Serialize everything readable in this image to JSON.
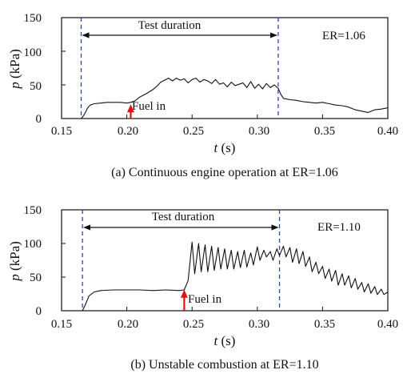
{
  "chart_data": [
    {
      "type": "line",
      "caption": "(a) Continuous engine operation at ER=1.06",
      "ylabel_var": "p",
      "ylabel_unit": " (kPa)",
      "xlabel_var": "t",
      "xlabel_unit": " (s)",
      "xlim": [
        0.15,
        0.4
      ],
      "ylim": [
        0,
        150
      ],
      "xticks": [
        0.15,
        0.2,
        0.25,
        0.3,
        0.35,
        0.4
      ],
      "xtick_labels": [
        "0.15",
        "0.20",
        "0.25",
        "0.30",
        "0.35",
        "0.40"
      ],
      "yticks": [
        0,
        50,
        100,
        150
      ],
      "ytick_labels": [
        "0",
        "50",
        "100",
        "150"
      ],
      "er_label": "ER=1.06",
      "test_duration_label": "Test duration",
      "test_start": 0.165,
      "test_end": 0.316,
      "fuel_in_label": "Fuel in",
      "fuel_in_t": 0.203,
      "fuel_in_p": 20,
      "series": [
        {
          "x": [
            0.15,
            0.165,
            0.166,
            0.168,
            0.17,
            0.172,
            0.175,
            0.18,
            0.185,
            0.19,
            0.195,
            0.2,
            0.203,
            0.206,
            0.21,
            0.215,
            0.22,
            0.223,
            0.226,
            0.229,
            0.232,
            0.235,
            0.238,
            0.241,
            0.244,
            0.247,
            0.25,
            0.253,
            0.256,
            0.259,
            0.262,
            0.265,
            0.268,
            0.271,
            0.274,
            0.277,
            0.28,
            0.283,
            0.286,
            0.289,
            0.292,
            0.295,
            0.298,
            0.301,
            0.304,
            0.307,
            0.31,
            0.313,
            0.316,
            0.318,
            0.32,
            0.325,
            0.33,
            0.335,
            0.34,
            0.345,
            0.35,
            0.355,
            0.36,
            0.365,
            0.37,
            0.375,
            0.38,
            0.385,
            0.39,
            0.395,
            0.4
          ],
          "y": [
            0,
            0,
            2,
            8,
            16,
            20,
            22,
            23,
            24,
            24,
            24,
            23,
            24,
            26,
            32,
            37,
            43,
            48,
            54,
            57,
            60,
            56,
            60,
            57,
            59,
            53,
            58,
            60,
            54,
            58,
            56,
            52,
            58,
            51,
            53,
            47,
            54,
            49,
            51,
            53,
            46,
            55,
            45,
            51,
            44,
            52,
            46,
            50,
            45,
            36,
            30,
            28,
            27,
            25,
            24,
            23,
            24,
            22,
            20,
            19,
            17,
            13,
            11,
            9,
            13,
            14,
            16
          ]
        }
      ]
    },
    {
      "type": "line",
      "caption": "(b) Unstable combustion at ER=1.10",
      "ylabel_var": "p",
      "ylabel_unit": " (kPa)",
      "xlabel_var": "t",
      "xlabel_unit": " (s)",
      "xlim": [
        0.15,
        0.4
      ],
      "ylim": [
        0,
        150
      ],
      "xticks": [
        0.15,
        0.2,
        0.25,
        0.3,
        0.35,
        0.4
      ],
      "xtick_labels": [
        "0.15",
        "0.20",
        "0.25",
        "0.30",
        "0.35",
        "0.40"
      ],
      "yticks": [
        0,
        50,
        100,
        150
      ],
      "ytick_labels": [
        "0",
        "50",
        "100",
        "150"
      ],
      "er_label": "ER=1.10",
      "test_duration_label": "Test duration",
      "test_start": 0.166,
      "test_end": 0.317,
      "fuel_in_label": "Fuel in",
      "fuel_in_t": 0.244,
      "fuel_in_p": 30,
      "series": [
        {
          "x": [
            0.15,
            0.166,
            0.168,
            0.171,
            0.175,
            0.18,
            0.19,
            0.2,
            0.21,
            0.22,
            0.23,
            0.24,
            0.244,
            0.247,
            0.25,
            0.252,
            0.255,
            0.257,
            0.26,
            0.262,
            0.265,
            0.267,
            0.27,
            0.272,
            0.275,
            0.277,
            0.28,
            0.282,
            0.285,
            0.287,
            0.29,
            0.292,
            0.295,
            0.297,
            0.3,
            0.302,
            0.305,
            0.307,
            0.31,
            0.312,
            0.315,
            0.317,
            0.32,
            0.322,
            0.325,
            0.327,
            0.33,
            0.332,
            0.335,
            0.337,
            0.34,
            0.342,
            0.345,
            0.347,
            0.35,
            0.352,
            0.355,
            0.357,
            0.36,
            0.362,
            0.365,
            0.367,
            0.37,
            0.372,
            0.375,
            0.377,
            0.38,
            0.382,
            0.385,
            0.387,
            0.39,
            0.392,
            0.395,
            0.397,
            0.4
          ],
          "y": [
            0,
            0,
            8,
            22,
            28,
            30,
            31,
            31,
            31,
            30,
            31,
            30,
            31,
            45,
            102,
            55,
            100,
            58,
            98,
            58,
            96,
            60,
            94,
            62,
            92,
            62,
            90,
            62,
            88,
            64,
            90,
            65,
            86,
            68,
            95,
            75,
            90,
            80,
            88,
            75,
            92,
            82,
            96,
            80,
            94,
            72,
            92,
            70,
            88,
            66,
            80,
            58,
            72,
            55,
            66,
            48,
            62,
            44,
            60,
            38,
            55,
            38,
            52,
            34,
            48,
            32,
            42,
            28,
            40,
            26,
            36,
            24,
            32,
            24,
            28
          ]
        }
      ]
    }
  ]
}
